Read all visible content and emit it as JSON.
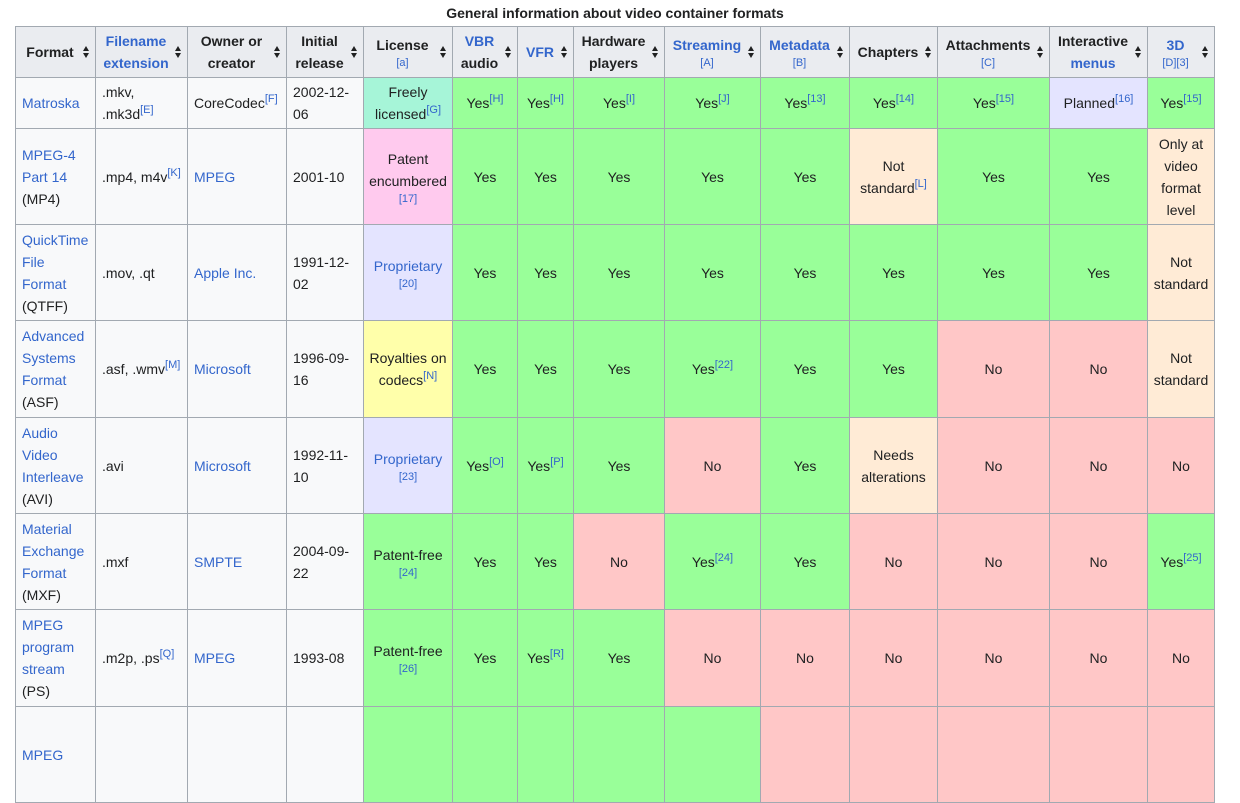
{
  "table": {
    "caption": "General information about video container formats",
    "headers": [
      {
        "parts": [
          {
            "text": "Format"
          }
        ]
      },
      {
        "parts": [
          {
            "text": "Filename extension",
            "link": true
          }
        ]
      },
      {
        "parts": [
          {
            "text": "Owner or creator"
          }
        ]
      },
      {
        "parts": [
          {
            "text": "Initial release"
          }
        ]
      },
      {
        "parts": [
          {
            "text": "License"
          }
        ],
        "ref": "[a]"
      },
      {
        "parts": [
          {
            "text": "VBR",
            "link": true
          },
          {
            "text": "audio"
          }
        ]
      },
      {
        "parts": [
          {
            "text": "VFR",
            "link": true
          }
        ]
      },
      {
        "parts": [
          {
            "text": "Hardware players"
          }
        ]
      },
      {
        "parts": [
          {
            "text": "Streaming",
            "link": true
          }
        ],
        "ref": "[A]"
      },
      {
        "parts": [
          {
            "text": "Metadata",
            "link": true
          }
        ],
        "ref": "[B]"
      },
      {
        "parts": [
          {
            "text": "Chapters"
          }
        ]
      },
      {
        "parts": [
          {
            "text": "Attachments"
          }
        ],
        "ref": "[C]"
      },
      {
        "parts": [
          {
            "text": "Interactive"
          },
          {
            "text": "menus",
            "link": true
          }
        ]
      },
      {
        "parts": [
          {
            "text": "3D",
            "link": true
          }
        ],
        "ref": "[D][3]"
      }
    ],
    "rows": [
      {
        "format": {
          "name": "Matroska"
        },
        "extension": {
          "text": ".mkv, .mk3d",
          "note": "[E]"
        },
        "owner": {
          "text": "CoreCodec",
          "note": "[F]"
        },
        "release": "2002-12-06",
        "license": {
          "text": "Freely licensed",
          "note": "[G]",
          "color": "#a6f5d8"
        },
        "features": [
          {
            "text": "Yes",
            "note": "[H]",
            "color": "#9f9"
          },
          {
            "text": "Yes",
            "note": "[H]",
            "color": "#9f9"
          },
          {
            "text": "Yes",
            "note": "[I]",
            "color": "#9f9"
          },
          {
            "text": "Yes",
            "note": "[J]",
            "color": "#9f9"
          },
          {
            "text": "Yes",
            "note": "[13]",
            "color": "#9f9"
          },
          {
            "text": "Yes",
            "note": "[14]",
            "color": "#9f9"
          },
          {
            "text": "Yes",
            "note": "[15]",
            "color": "#9f9"
          },
          {
            "text": "Planned",
            "note": "[16]",
            "color": "#e4e4ff"
          },
          {
            "text": "Yes",
            "note": "[15]",
            "color": "#9f9"
          }
        ]
      },
      {
        "format": {
          "name": "MPEG-4 Part 14",
          "abbr": "(MP4)"
        },
        "extension": {
          "text": ".mp4, m4v",
          "note": "[K]"
        },
        "owner": {
          "text": "MPEG",
          "link": true
        },
        "release": "2001-10",
        "license": {
          "text": "Patent encumbered",
          "ref": "[17]",
          "color": "#ffcaee"
        },
        "features": [
          {
            "text": "Yes",
            "color": "#9f9"
          },
          {
            "text": "Yes",
            "color": "#9f9"
          },
          {
            "text": "Yes",
            "color": "#9f9"
          },
          {
            "text": "Yes",
            "color": "#9f9"
          },
          {
            "text": "Yes",
            "color": "#9f9"
          },
          {
            "text": "Not standard",
            "note": "[L]",
            "color": "#ffebd6"
          },
          {
            "text": "Yes",
            "color": "#9f9"
          },
          {
            "text": "Yes",
            "color": "#9f9"
          },
          {
            "text": "Only at video format level",
            "color": "#ffebd6"
          }
        ]
      },
      {
        "format": {
          "name": "QuickTime File Format",
          "abbr": "(QTFF)"
        },
        "extension": {
          "text": ".mov, .qt"
        },
        "owner": {
          "text": "Apple Inc.",
          "link": true
        },
        "release": "1991-12-02",
        "license": {
          "text": "Proprietary",
          "link": true,
          "ref": "[20]",
          "color": "#e4e4ff"
        },
        "features": [
          {
            "text": "Yes",
            "color": "#9f9"
          },
          {
            "text": "Yes",
            "color": "#9f9"
          },
          {
            "text": "Yes",
            "color": "#9f9"
          },
          {
            "text": "Yes",
            "color": "#9f9"
          },
          {
            "text": "Yes",
            "color": "#9f9"
          },
          {
            "text": "Yes",
            "color": "#9f9"
          },
          {
            "text": "Yes",
            "color": "#9f9"
          },
          {
            "text": "Yes",
            "color": "#9f9"
          },
          {
            "text": "Not standard",
            "color": "#ffebd6"
          }
        ]
      },
      {
        "format": {
          "name": "Advanced Systems Format",
          "abbr": "(ASF)"
        },
        "extension": {
          "text": ".asf, .wmv",
          "note": "[M]"
        },
        "owner": {
          "text": "Microsoft",
          "link": true
        },
        "release": "1996-09-16",
        "license": {
          "text": "Royalties on codecs",
          "note": "[N]",
          "color": "#ffffaa"
        },
        "features": [
          {
            "text": "Yes",
            "color": "#9f9"
          },
          {
            "text": "Yes",
            "color": "#9f9"
          },
          {
            "text": "Yes",
            "color": "#9f9"
          },
          {
            "text": "Yes",
            "note": "[22]",
            "color": "#9f9"
          },
          {
            "text": "Yes",
            "color": "#9f9"
          },
          {
            "text": "Yes",
            "color": "#9f9"
          },
          {
            "text": "No",
            "color": "#ffc7c7"
          },
          {
            "text": "No",
            "color": "#ffc7c7"
          },
          {
            "text": "Not standard",
            "color": "#ffebd6"
          }
        ]
      },
      {
        "format": {
          "name": "Audio Video Interleave",
          "abbr": "(AVI)"
        },
        "extension": {
          "text": ".avi"
        },
        "owner": {
          "text": "Microsoft",
          "link": true
        },
        "release": "1992-11-10",
        "license": {
          "text": "Proprietary",
          "link": true,
          "ref": "[23]",
          "color": "#e4e4ff"
        },
        "features": [
          {
            "text": "Yes",
            "note": "[O]",
            "color": "#9f9"
          },
          {
            "text": "Yes",
            "note": "[P]",
            "color": "#9f9"
          },
          {
            "text": "Yes",
            "color": "#9f9"
          },
          {
            "text": "No",
            "color": "#ffc7c7"
          },
          {
            "text": "Yes",
            "color": "#9f9"
          },
          {
            "text": "Needs alterations",
            "color": "#ffebd6"
          },
          {
            "text": "No",
            "color": "#ffc7c7"
          },
          {
            "text": "No",
            "color": "#ffc7c7"
          },
          {
            "text": "No",
            "color": "#ffc7c7"
          }
        ]
      },
      {
        "format": {
          "name": "Material Exchange Format",
          "abbr": "(MXF)"
        },
        "extension": {
          "text": ".mxf"
        },
        "owner": {
          "text": "SMPTE",
          "link": true
        },
        "release": "2004-09-22",
        "license": {
          "text": "Patent-free",
          "ref": "[24]",
          "color": "#9f9"
        },
        "features": [
          {
            "text": "Yes",
            "color": "#9f9"
          },
          {
            "text": "Yes",
            "color": "#9f9"
          },
          {
            "text": "No",
            "color": "#ffc7c7"
          },
          {
            "text": "Yes",
            "note": "[24]",
            "color": "#9f9"
          },
          {
            "text": "Yes",
            "color": "#9f9"
          },
          {
            "text": "No",
            "color": "#ffc7c7"
          },
          {
            "text": "No",
            "color": "#ffc7c7"
          },
          {
            "text": "No",
            "color": "#ffc7c7"
          },
          {
            "text": "Yes",
            "note": "[25]",
            "color": "#9f9"
          }
        ]
      },
      {
        "format": {
          "name": "MPEG program stream",
          "abbr": "(PS)"
        },
        "extension": {
          "text": ".m2p, .ps",
          "note": "[Q]"
        },
        "owner": {
          "text": "MPEG",
          "link": true
        },
        "release": "1993-08",
        "license": {
          "text": "Patent-free",
          "ref": "[26]",
          "color": "#9f9"
        },
        "features": [
          {
            "text": "Yes",
            "color": "#9f9"
          },
          {
            "text": "Yes",
            "note": "[R]",
            "color": "#9f9"
          },
          {
            "text": "Yes",
            "color": "#9f9"
          },
          {
            "text": "No",
            "color": "#ffc7c7"
          },
          {
            "text": "No",
            "color": "#ffc7c7"
          },
          {
            "text": "No",
            "color": "#ffc7c7"
          },
          {
            "text": "No",
            "color": "#ffc7c7"
          },
          {
            "text": "No",
            "color": "#ffc7c7"
          },
          {
            "text": "No",
            "color": "#ffc7c7"
          }
        ]
      },
      {
        "format": {
          "name": "MPEG"
        },
        "license": {
          "color": "#9f9"
        },
        "features": [
          {
            "color": "#9f9"
          },
          {
            "color": "#9f9"
          },
          {
            "color": "#9f9"
          },
          {
            "color": "#9f9"
          },
          {
            "color": "#ffc7c7"
          },
          {
            "color": "#ffc7c7"
          },
          {
            "color": "#ffc7c7"
          },
          {
            "color": "#ffc7c7"
          },
          {
            "color": "#ffc7c7"
          }
        ]
      }
    ]
  }
}
